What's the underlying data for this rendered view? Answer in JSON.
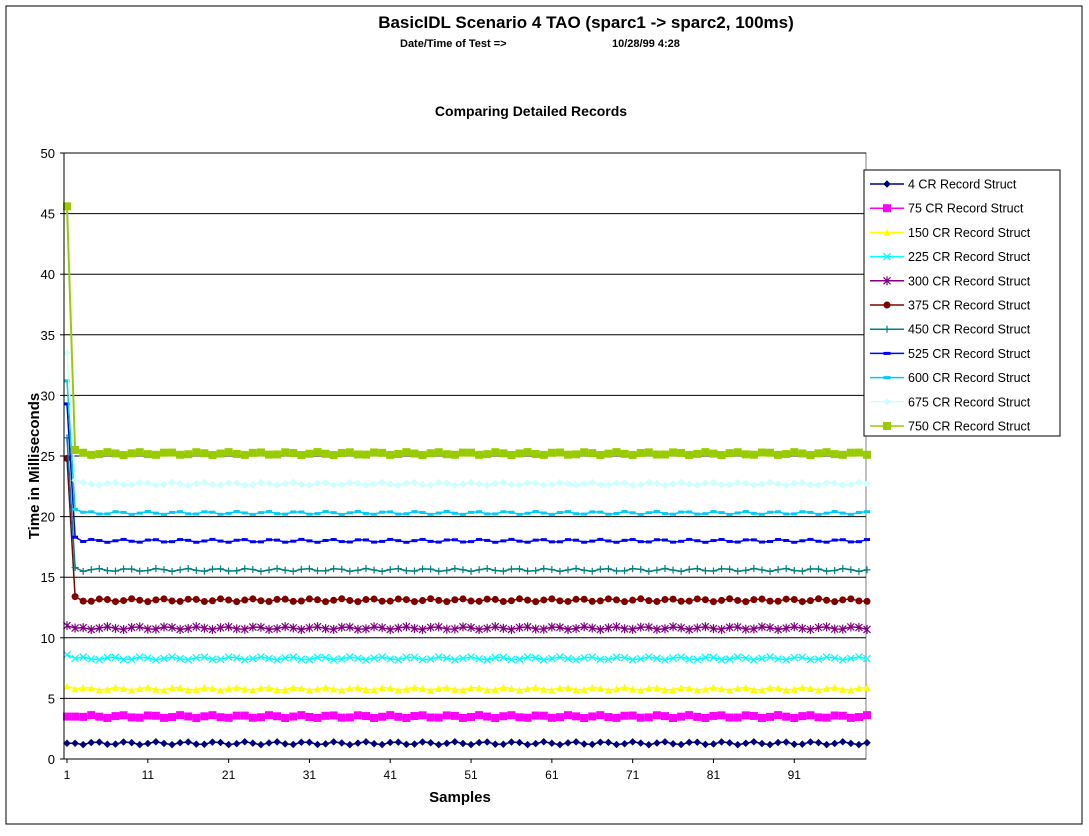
{
  "chart_data": {
    "type": "line",
    "title": "BasicIDL Scenario 4 TAO  (sparc1 -> sparc2, 100ms)",
    "subtitle_label": "Date/Time of Test  =>",
    "subtitle_value": "10/28/99 4:28",
    "chart_heading": "Comparing Detailed Records",
    "xlabel": "Samples",
    "ylabel": "Time in Milliseconds",
    "xlim": [
      1,
      100
    ],
    "ylim": [
      0,
      50
    ],
    "x_ticks": [
      "1",
      "11",
      "21",
      "31",
      "41",
      "51",
      "61",
      "71",
      "81",
      "91"
    ],
    "y_ticks": [
      "0",
      "5",
      "10",
      "15",
      "20",
      "25",
      "30",
      "35",
      "40",
      "45",
      "50"
    ],
    "grid": "horizontal",
    "legend_position": "right",
    "series": [
      {
        "name": "4 CR Record Struct",
        "color": "#000080",
        "marker": "diamond",
        "first": 1.3,
        "second": 1.3,
        "steady": 1.3
      },
      {
        "name": "75 CR Record Struct",
        "color": "#ff00ff",
        "marker": "square",
        "first": 3.5,
        "second": 3.5,
        "steady": 3.5
      },
      {
        "name": "150 CR Record Struct",
        "color": "#ffff00",
        "marker": "triangle",
        "first": 6.0,
        "second": 5.8,
        "steady": 5.8
      },
      {
        "name": "225 CR Record Struct",
        "color": "#00ffff",
        "marker": "x",
        "first": 8.6,
        "second": 8.3,
        "steady": 8.3
      },
      {
        "name": "300 CR Record Struct",
        "color": "#800080",
        "marker": "star",
        "first": 11.0,
        "second": 10.8,
        "steady": 10.8
      },
      {
        "name": "375 CR Record Struct",
        "color": "#800000",
        "marker": "circle",
        "first": 24.8,
        "second": 13.4,
        "steady": 13.1
      },
      {
        "name": "450 CR Record Struct",
        "color": "#008080",
        "marker": "plus",
        "first": 26.5,
        "second": 15.8,
        "steady": 15.6
      },
      {
        "name": "525 CR Record Struct",
        "color": "#0000ff",
        "marker": "dash",
        "first": 29.3,
        "second": 18.3,
        "steady": 18.0
      },
      {
        "name": "600 CR Record Struct",
        "color": "#00ccff",
        "marker": "dash",
        "first": 31.2,
        "second": 20.6,
        "steady": 20.3
      },
      {
        "name": "675 CR Record Struct",
        "color": "#ccffff",
        "marker": "diamond",
        "first": 33.5,
        "second": 23.0,
        "steady": 22.7
      },
      {
        "name": "750 CR Record Struct",
        "color": "#99cc00",
        "marker": "square",
        "first": 45.6,
        "second": 25.5,
        "steady": 25.2
      }
    ]
  }
}
